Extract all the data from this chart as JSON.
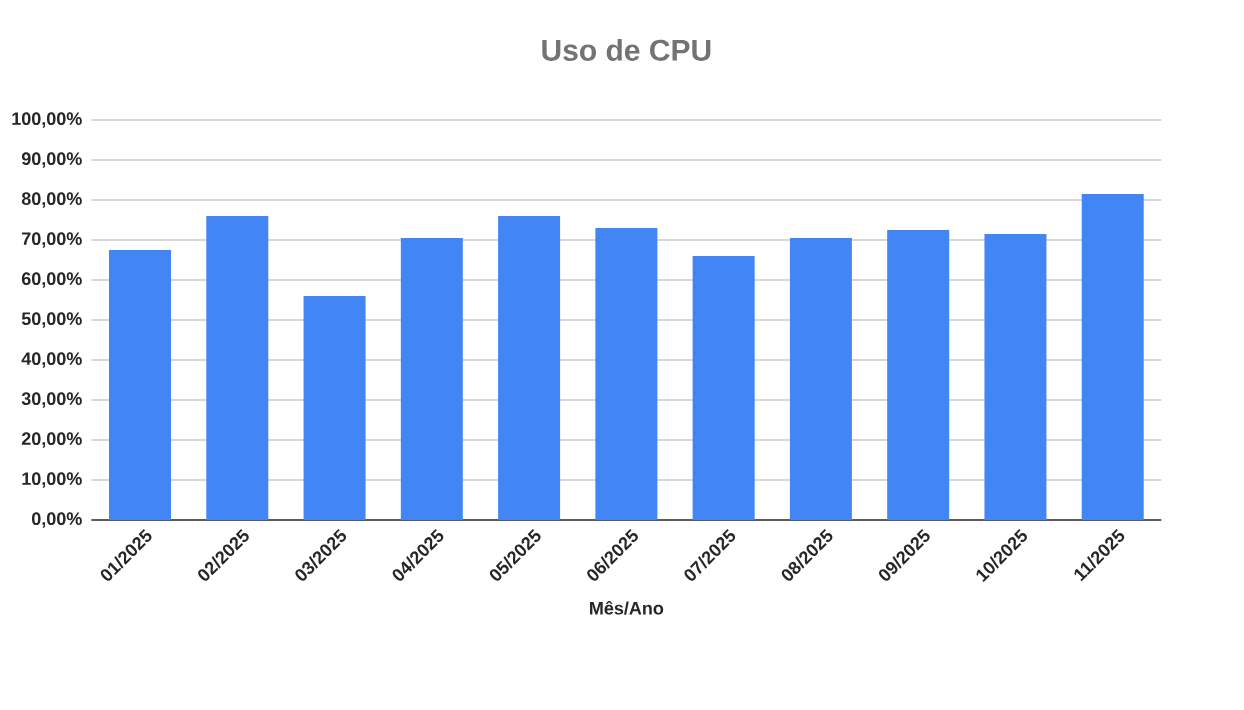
{
  "chart_data": {
    "type": "bar",
    "title": "Uso de CPU",
    "xlabel": "Mês/Ano",
    "categories": [
      "01/2025",
      "02/2025",
      "03/2025",
      "04/2025",
      "05/2025",
      "06/2025",
      "07/2025",
      "08/2025",
      "09/2025",
      "10/2025",
      "11/2025"
    ],
    "values": [
      67.5,
      76,
      56,
      70.5,
      76,
      73,
      66,
      70.5,
      72.5,
      71.5,
      81.5
    ],
    "color": "#4285f4",
    "ylim": [
      0,
      100
    ],
    "yticks": [
      {
        "value": 0,
        "label": "0,00%"
      },
      {
        "value": 10,
        "label": "10,00%"
      },
      {
        "value": 20,
        "label": "20,00%"
      },
      {
        "value": 30,
        "label": "30,00%"
      },
      {
        "value": 40,
        "label": "40,00%"
      },
      {
        "value": 50,
        "label": "50,00%"
      },
      {
        "value": 60,
        "label": "60,00%"
      },
      {
        "value": 70,
        "label": "70,00%"
      },
      {
        "value": 80,
        "label": "80,00%"
      },
      {
        "value": 90,
        "label": "90,00%"
      },
      {
        "value": 100,
        "label": "100,00%"
      }
    ],
    "grid": "y"
  }
}
